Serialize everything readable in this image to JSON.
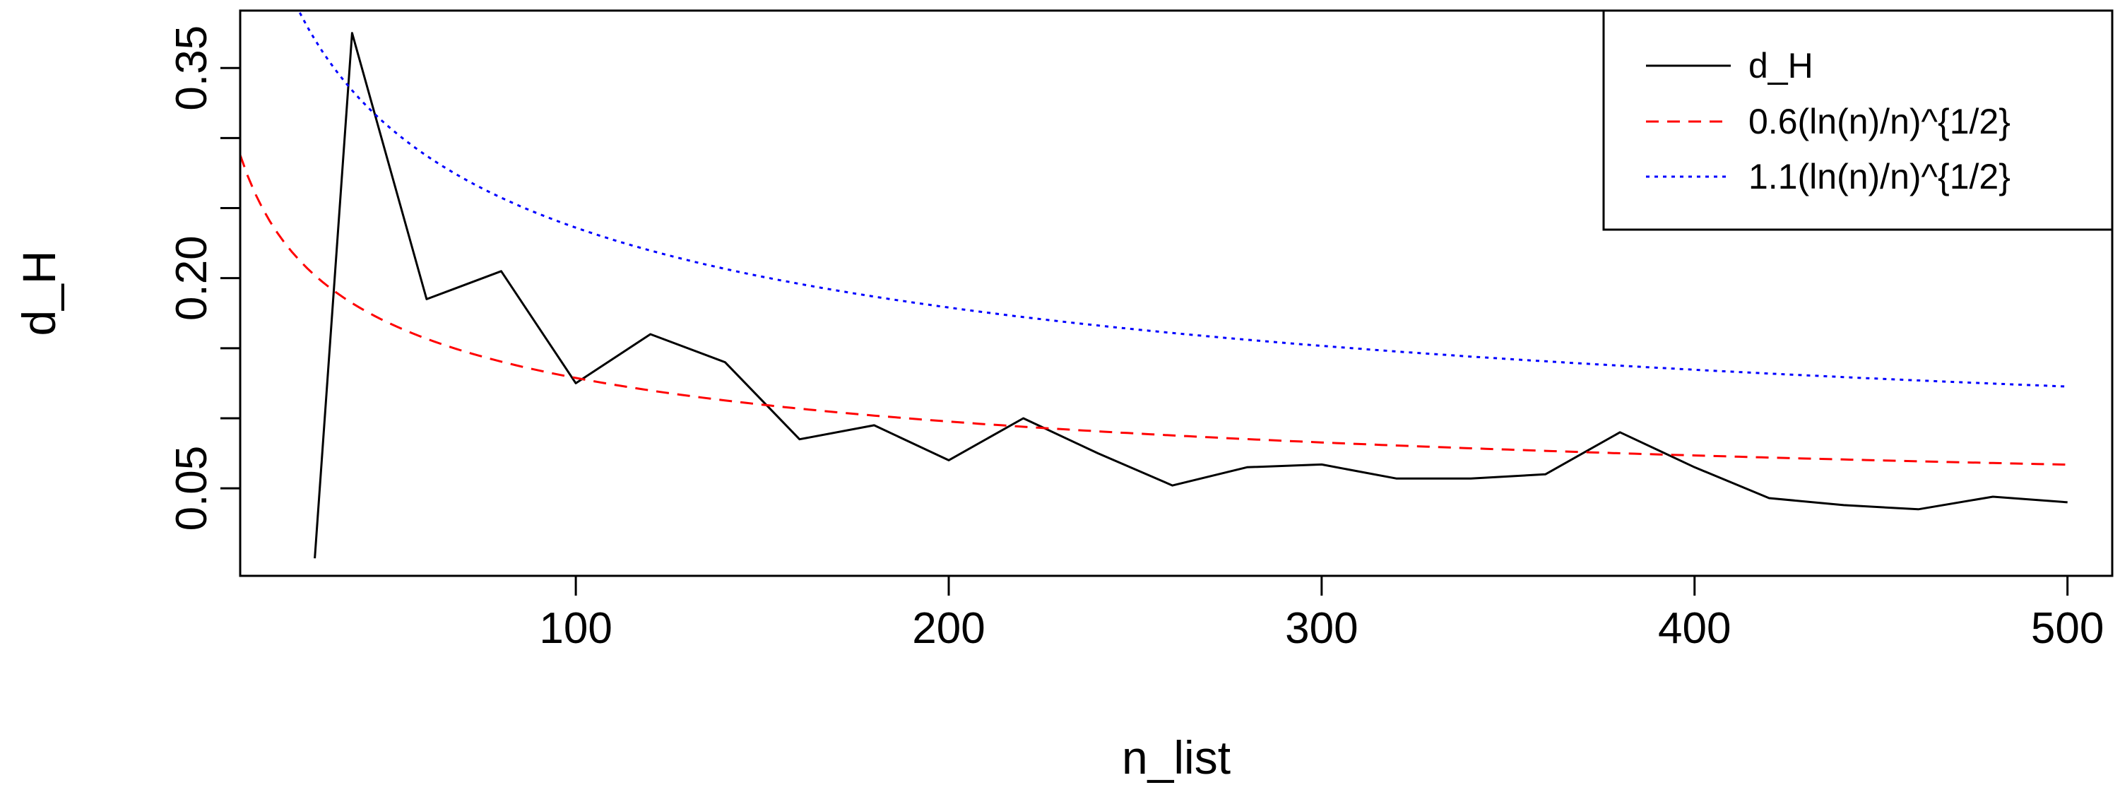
{
  "chart_data": {
    "type": "line",
    "title": "",
    "xlabel": "n_list",
    "ylabel": "d_H",
    "xlim": [
      10,
      512
    ],
    "ylim": [
      -0.0125,
      0.391
    ],
    "x_ticks": [
      100,
      200,
      300,
      400,
      500
    ],
    "y_ticks": [
      0.05,
      0.2,
      0.35
    ],
    "y_ticks_minor": [
      0.1,
      0.15,
      0.25,
      0.3
    ],
    "legend_position": "top-right",
    "series": [
      {
        "name": "d_H",
        "color": "#000000",
        "style": "solid",
        "x": [
          30,
          40,
          60,
          80,
          100,
          120,
          140,
          160,
          180,
          200,
          220,
          240,
          260,
          280,
          300,
          320,
          340,
          360,
          380,
          400,
          420,
          440,
          460,
          480,
          500
        ],
        "y": [
          0.0,
          0.375,
          0.185,
          0.205,
          0.125,
          0.16,
          0.14,
          0.085,
          0.095,
          0.07,
          0.1,
          0.075,
          0.052,
          0.065,
          0.067,
          0.057,
          0.057,
          0.06,
          0.09,
          0.065,
          0.043,
          0.038,
          0.035,
          0.044,
          0.04
        ]
      },
      {
        "name": "0.6(ln(n)/n)^{1/2}",
        "color": "#ff0000",
        "style": "dashed",
        "formula": "0.6*sqrt(ln(n)/n)"
      },
      {
        "name": "1.1(ln(n)/n)^{1/2}",
        "color": "#0000ff",
        "style": "dotted",
        "formula": "1.1*sqrt(ln(n)/n)"
      }
    ]
  },
  "ui": {
    "legend": {
      "entries": [
        "d_H",
        "0.6(ln(n)/n)^{1/2}",
        "1.1(ln(n)/n)^{1/2}"
      ]
    }
  }
}
